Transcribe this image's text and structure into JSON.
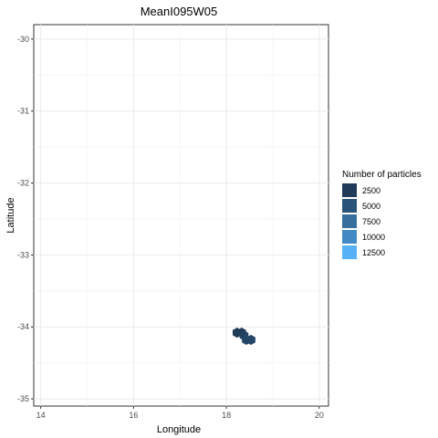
{
  "chart_data": {
    "type": "heatmap",
    "title": "MeanI095W05",
    "xlabel": "Longitude",
    "ylabel": "Latitude",
    "xlim": [
      13.85,
      20.2
    ],
    "ylim": [
      -35.1,
      -29.8
    ],
    "x_ticks": [
      14,
      16,
      18,
      20
    ],
    "x_tick_labels": [
      "14",
      "16",
      "18",
      "20"
    ],
    "y_ticks": [
      -30,
      -31,
      -32,
      -33,
      -34,
      -35
    ],
    "y_tick_labels": [
      "-30",
      "-31",
      "-32",
      "-33",
      "-34",
      "-35"
    ],
    "grid": true,
    "legend": {
      "title": "Number of particles",
      "position": "right",
      "entries": [
        {
          "label": "2500",
          "color": "#1f3b57"
        },
        {
          "label": "5000",
          "color": "#2b5479"
        },
        {
          "label": "7500",
          "color": "#366f9e"
        },
        {
          "label": "10000",
          "color": "#428ac4"
        },
        {
          "label": "12500",
          "color": "#56b1f7"
        }
      ]
    },
    "cells": [
      {
        "x": 18.23,
        "y": -34.08,
        "value": 2500
      },
      {
        "x": 18.33,
        "y": -34.08,
        "value": 2500
      },
      {
        "x": 18.38,
        "y": -34.12,
        "value": 3000
      },
      {
        "x": 18.43,
        "y": -34.18,
        "value": 3500
      },
      {
        "x": 18.53,
        "y": -34.18,
        "value": 3500
      }
    ]
  }
}
